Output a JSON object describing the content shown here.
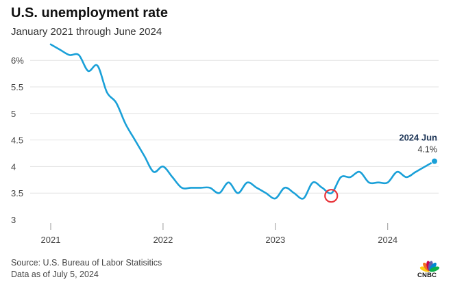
{
  "header": {
    "title": "U.S. unemployment rate",
    "subtitle": "January 2021 through June 2024"
  },
  "footer": {
    "source": "Source: U.S. Bureau of Labor Statisitics",
    "data_as_of": "Data as of July 5, 2024"
  },
  "brand": {
    "logo_text": "CNBC",
    "logo_colors": [
      "#fccc12",
      "#f37021",
      "#cc004c",
      "#6460aa",
      "#0089d0",
      "#0db14b"
    ]
  },
  "colors": {
    "line": "#1aa0d8",
    "grid": "#e3e3e3",
    "highlight_circle": "#e8343a",
    "axis": "#999999"
  },
  "chart_data": {
    "type": "line",
    "title": "U.S. unemployment rate",
    "subtitle": "January 2021 through June 2024",
    "xlabel": "",
    "ylabel": "",
    "x_range": [
      "2021-01",
      "2024-06"
    ],
    "ylim": [
      3,
      6.3
    ],
    "y_ticks": [
      {
        "value": 6,
        "label": "6%"
      },
      {
        "value": 5.5,
        "label": "5.5"
      },
      {
        "value": 5,
        "label": "5"
      },
      {
        "value": 4.5,
        "label": "4.5"
      },
      {
        "value": 4,
        "label": "4"
      },
      {
        "value": 3.5,
        "label": "3.5"
      },
      {
        "value": 3,
        "label": "3"
      }
    ],
    "x_ticks": [
      {
        "value": "2021-01",
        "label": "2021"
      },
      {
        "value": "2022-01",
        "label": "2022"
      },
      {
        "value": "2023-01",
        "label": "2023"
      },
      {
        "value": "2024-01",
        "label": "2024"
      }
    ],
    "grid": true,
    "series": [
      {
        "x": [
          "2021-01",
          "2021-02",
          "2021-03",
          "2021-04",
          "2021-05",
          "2021-06",
          "2021-07",
          "2021-08",
          "2021-09",
          "2021-10",
          "2021-11",
          "2021-12",
          "2022-01",
          "2022-02",
          "2022-03",
          "2022-04",
          "2022-05",
          "2022-06",
          "2022-07",
          "2022-08",
          "2022-09",
          "2022-10",
          "2022-11",
          "2022-12",
          "2023-01",
          "2023-02",
          "2023-03",
          "2023-04",
          "2023-05",
          "2023-06",
          "2023-07",
          "2023-08",
          "2023-09",
          "2023-10",
          "2023-11",
          "2023-12",
          "2024-01",
          "2024-02",
          "2024-03",
          "2024-04",
          "2024-05",
          "2024-06"
        ],
        "values": [
          6.3,
          6.2,
          6.1,
          6.1,
          5.8,
          5.9,
          5.4,
          5.2,
          4.8,
          4.5,
          4.2,
          3.9,
          4.0,
          3.8,
          3.6,
          3.6,
          3.6,
          3.6,
          3.5,
          3.7,
          3.5,
          3.7,
          3.6,
          3.5,
          3.4,
          3.6,
          3.5,
          3.4,
          3.7,
          3.6,
          3.5,
          3.8,
          3.8,
          3.9,
          3.7,
          3.7,
          3.7,
          3.9,
          3.8,
          3.9,
          4.0,
          4.1
        ]
      }
    ],
    "end_label": {
      "date": "2024 Jun",
      "value": "4.1%"
    },
    "highlight": {
      "x": "2023-07",
      "value": 3.5
    }
  }
}
